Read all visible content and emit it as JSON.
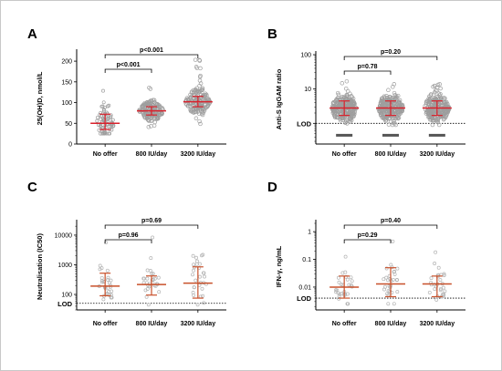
{
  "chart_data": [
    {
      "panel": "A",
      "type": "scatter",
      "ylabel": "25(OH)D, nmol/L",
      "scale": "linear",
      "ylim": [
        0,
        220
      ],
      "yticks": [
        0,
        50,
        100,
        150,
        200
      ],
      "yticklabels": [
        "0",
        "50",
        "100",
        "150",
        "200"
      ],
      "categories": [
        "No offer",
        "800 IU/day",
        "3200 IU/day"
      ],
      "color": "#9e9e9e",
      "summary": [
        {
          "center": 50,
          "low": 35,
          "high": 72
        },
        {
          "center": 80,
          "low": 70,
          "high": 90
        },
        {
          "center": 102,
          "low": 90,
          "high": 115
        }
      ],
      "spread": [
        {
          "min": 25,
          "max": 140,
          "n": 70
        },
        {
          "min": 40,
          "max": 140,
          "n": 170
        },
        {
          "min": 45,
          "max": 205,
          "n": 170
        }
      ],
      "comparisons": [
        {
          "from": 0,
          "to": 1,
          "label": "p<0.001"
        },
        {
          "from": 0,
          "to": 2,
          "label": "p<0.001"
        }
      ],
      "lod": null
    },
    {
      "panel": "B",
      "type": "scatter",
      "ylabel": "Anti-S IgGAM ratio",
      "scale": "log",
      "ylim": [
        0.25,
        100
      ],
      "yticks": [
        1,
        10,
        100
      ],
      "yticklabels": [
        "",
        "10",
        "100"
      ],
      "categories": [
        "No offer",
        "800 IU/day",
        "3200 IU/day"
      ],
      "color": "#9e9e9e",
      "summary": [
        {
          "center": 2.8,
          "low": 1.7,
          "high": 4.5
        },
        {
          "center": 2.8,
          "low": 1.7,
          "high": 4.5
        },
        {
          "center": 2.8,
          "low": 1.7,
          "high": 4.5
        }
      ],
      "spread": [
        {
          "min": 0.9,
          "max": 22,
          "n": 260
        },
        {
          "min": 0.9,
          "max": 15,
          "n": 260
        },
        {
          "min": 0.9,
          "max": 15,
          "n": 260
        }
      ],
      "below_lod": 0.45,
      "comparisons": [
        {
          "from": 0,
          "to": 1,
          "label": "p=0.78"
        },
        {
          "from": 0,
          "to": 2,
          "label": "p=0.20"
        }
      ],
      "lod": {
        "value": 1,
        "label": "LOD"
      }
    },
    {
      "panel": "C",
      "type": "scatter",
      "ylabel": "Neutralisation (IC50)",
      "scale": "log",
      "ylim": [
        30,
        25000
      ],
      "yticks": [
        100,
        1000,
        10000
      ],
      "yticklabels": [
        "100",
        "1000",
        "10000"
      ],
      "categories": [
        "No offer",
        "800 IU/day",
        "3200 IU/day"
      ],
      "color": "#b4b4b4",
      "summary": [
        {
          "center": 190,
          "low": 90,
          "high": 520
        },
        {
          "center": 215,
          "low": 95,
          "high": 420
        },
        {
          "center": 240,
          "low": 75,
          "high": 850
        }
      ],
      "spread": [
        {
          "min": 45,
          "max": 7000,
          "n": 32
        },
        {
          "min": 45,
          "max": 12000,
          "n": 28
        },
        {
          "min": 45,
          "max": 4000,
          "n": 30
        }
      ],
      "comparisons": [
        {
          "from": 0,
          "to": 1,
          "label": "p=0.96"
        },
        {
          "from": 0,
          "to": 2,
          "label": "p=0.69"
        }
      ],
      "lod": {
        "value": 50,
        "label": "LOD"
      }
    },
    {
      "panel": "D",
      "type": "scatter",
      "ylabel": "IFN-γ, ng/mL",
      "scale": "log",
      "ylim": [
        0.0015,
        2
      ],
      "yticks": [
        0.01,
        0.1,
        1
      ],
      "yticklabels": [
        "0.01",
        "0.1",
        "1"
      ],
      "categories": [
        "No offer",
        "800 IU/day",
        "3200 IU/day"
      ],
      "color": "#b4b4b4",
      "summary": [
        {
          "center": 0.01,
          "low": 0.004,
          "high": 0.025
        },
        {
          "center": 0.013,
          "low": 0.0045,
          "high": 0.05
        },
        {
          "center": 0.013,
          "low": 0.0045,
          "high": 0.025
        }
      ],
      "spread": [
        {
          "min": 0.0025,
          "max": 0.45,
          "n": 30
        },
        {
          "min": 0.0025,
          "max": 0.8,
          "n": 30
        },
        {
          "min": 0.0025,
          "max": 0.2,
          "n": 30
        }
      ],
      "comparisons": [
        {
          "from": 0,
          "to": 1,
          "label": "p=0.29"
        },
        {
          "from": 0,
          "to": 2,
          "label": "p=0.40"
        }
      ],
      "lod": {
        "value": 0.004,
        "label": "LOD"
      }
    }
  ]
}
